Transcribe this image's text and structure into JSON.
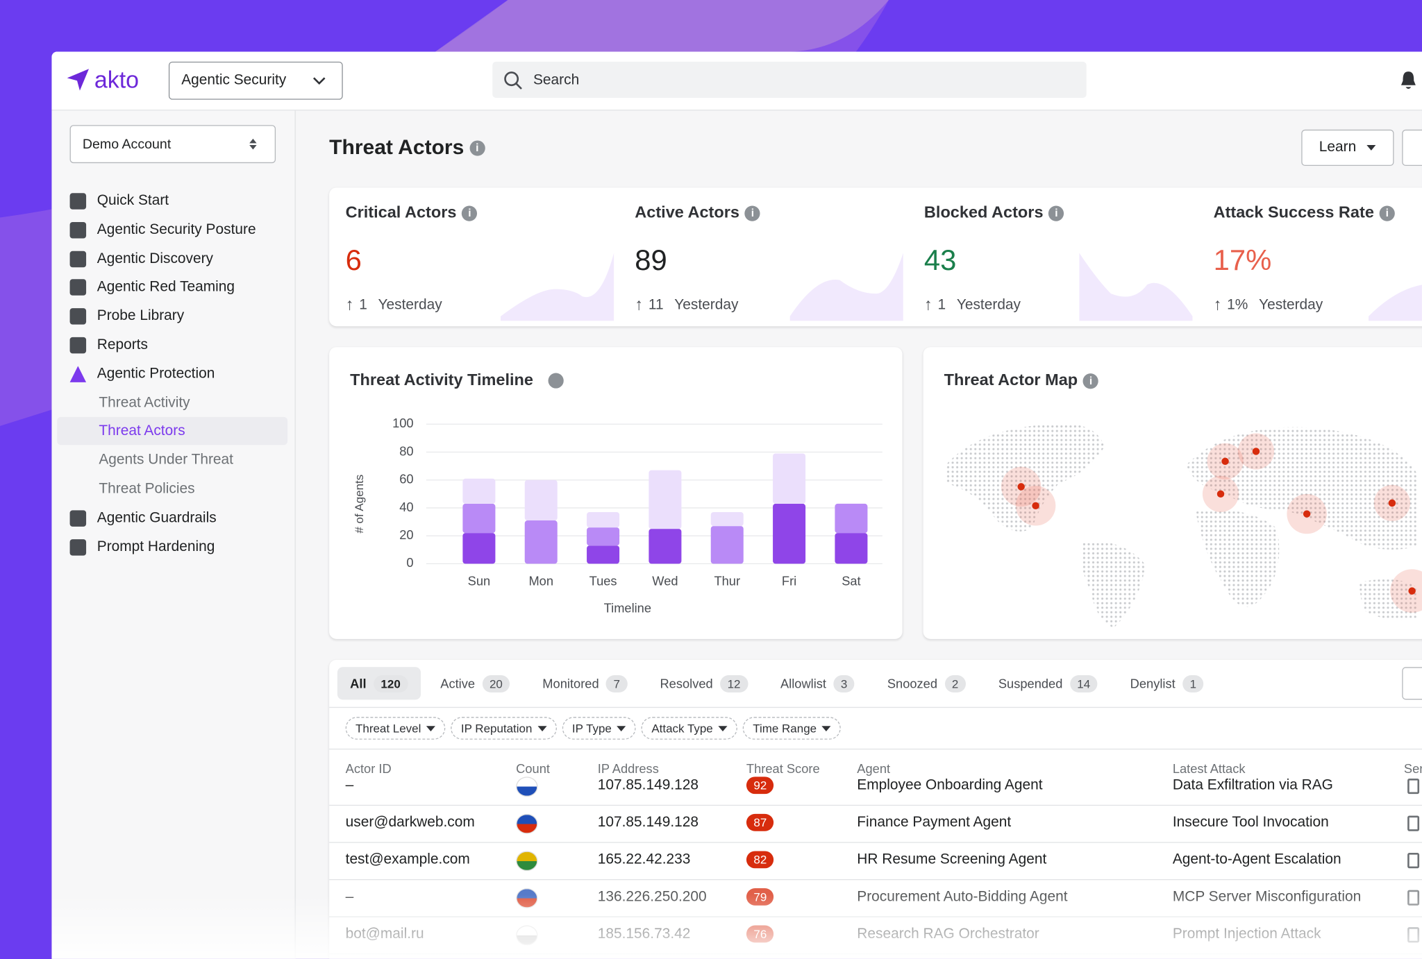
{
  "header": {
    "logo": "akto",
    "workspace": "Agentic Security",
    "search": "Search"
  },
  "sidebar": {
    "account": "Demo Account",
    "nav": [
      "Quick Start",
      "Agentic Security Posture",
      "Agentic Discovery",
      "Agentic Red Teaming",
      "Probe Library",
      "Reports",
      "Agentic Protection"
    ],
    "subnav": [
      "Threat Activity",
      "Threat Actors",
      "Agents Under Threat",
      "Threat Policies"
    ],
    "nav_after": [
      "Agentic Guardrails",
      "Prompt Hardening"
    ]
  },
  "page": {
    "title": "Threat Actors",
    "learn": "Learn"
  },
  "cards": [
    {
      "title": "Critical Actors",
      "value": "6",
      "change": "1",
      "period": "Yesterday"
    },
    {
      "title": "Active Actors",
      "value": "89",
      "change": "11",
      "period": "Yesterday"
    },
    {
      "title": "Blocked Actors",
      "value": "43",
      "change": "1",
      "period": "Yesterday"
    },
    {
      "title": "Attack Success Rate",
      "value": "17%",
      "change": "1%",
      "period": "Yesterday"
    }
  ],
  "chart_data": {
    "type": "bar",
    "stacked": true,
    "title": "Threat Activity Timeline",
    "y_label": "# of Agents",
    "x_label": "Timeline",
    "categories": [
      "Sun",
      "Mon",
      "Tues",
      "Wed",
      "Thur",
      "Fri",
      "Sat"
    ],
    "series": [
      {
        "color": "#8f45e8",
        "values": [
          22,
          0,
          13,
          25,
          0,
          43,
          22
        ]
      },
      {
        "color": "#b98af6",
        "values": [
          21,
          31,
          13,
          0,
          27,
          0,
          21
        ]
      },
      {
        "color": "#ebdffc",
        "values": [
          18,
          29,
          11,
          42,
          10,
          36,
          0
        ]
      }
    ],
    "ylim": [
      0,
      100
    ],
    "yticks": [
      0,
      20,
      40,
      60,
      80,
      100
    ],
    "grid": true
  },
  "map": {
    "title": "Threat Actor Map"
  },
  "tabs": [
    {
      "label": "All",
      "count": 120
    },
    {
      "label": "Active",
      "count": 20
    },
    {
      "label": "Monitored",
      "count": 7
    },
    {
      "label": "Resolved",
      "count": 12
    },
    {
      "label": "Allowlist",
      "count": 3
    },
    {
      "label": "Snoozed",
      "count": 2
    },
    {
      "label": "Suspended",
      "count": 14
    },
    {
      "label": "Denylist",
      "count": 1
    }
  ],
  "filters": [
    "Threat Level",
    "IP Reputation",
    "IP Type",
    "Attack Type",
    "Time Range"
  ],
  "table": {
    "columns": [
      "Actor ID",
      "Count",
      "IP Address",
      "Threat Score",
      "Agent",
      "Latest Attack",
      "Ser"
    ],
    "rows": [
      [
        "–",
        "107.85.149.128",
        92,
        "Employee Onboarding Agent",
        "Data Exfiltration via RAG"
      ],
      [
        "user@darkweb.com",
        "107.85.149.128",
        87,
        "Finance Payment Agent",
        "Insecure Tool Invocation"
      ],
      [
        "test@example.com",
        "165.22.42.233",
        82,
        "HR Resume Screening Agent",
        "Agent-to-Agent Escalation"
      ],
      [
        "–",
        "136.226.250.200",
        79,
        "Procurement Auto-Bidding Agent",
        "MCP Server Misconfiguration"
      ],
      [
        "bot@mail.ru",
        "185.156.73.42",
        76,
        "Research RAG Orchestrator",
        "Prompt Injection Attack"
      ]
    ]
  }
}
